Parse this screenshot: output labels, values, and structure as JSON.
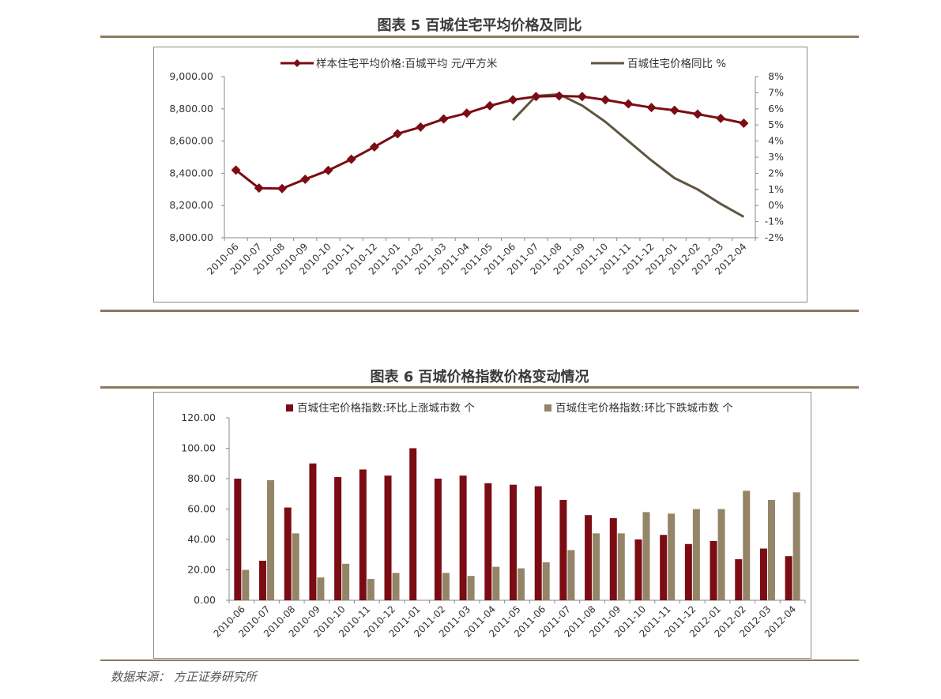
{
  "figure5": {
    "title": "图表 5 百城住宅平均价格及同比"
  },
  "figure6": {
    "title": "图表 6 百城价格指数价格变动情况"
  },
  "source": "数据来源：   方正证券研究所",
  "colors": {
    "dark_red": "#7b0c14",
    "olive": "#5e5440",
    "tan": "#948468",
    "rule": "#8a7a5e"
  },
  "chart_data": [
    {
      "type": "line",
      "categories": [
        "2010-06",
        "2010-07",
        "2010-08",
        "2010-09",
        "2010-10",
        "2010-11",
        "2010-12",
        "2011-01",
        "2011-02",
        "2011-03",
        "2011-04",
        "2011-05",
        "2011-06",
        "2011-07",
        "2011-08",
        "2011-09",
        "2011-10",
        "2011-11",
        "2011-12",
        "2012-01",
        "2012-02",
        "2012-03",
        "2012-04"
      ],
      "series": [
        {
          "name": "样本住宅平均价格:百城平均 元/平方米",
          "axis": "left",
          "marker": "diamond",
          "values": [
            8420,
            8308,
            8305,
            8363,
            8418,
            8487,
            8564,
            8645,
            8687,
            8737,
            8773,
            8819,
            8856,
            8876,
            8880,
            8876,
            8856,
            8831,
            8808,
            8791,
            8767,
            8741,
            8711
          ]
        },
        {
          "name": "百城住宅价格同比 %",
          "axis": "right",
          "values": [
            null,
            null,
            null,
            null,
            null,
            null,
            null,
            null,
            null,
            null,
            null,
            null,
            5.3,
            6.8,
            6.9,
            6.2,
            5.2,
            4.0,
            2.8,
            1.7,
            1.0,
            0.1,
            -0.7
          ]
        }
      ],
      "y_left": {
        "min": 8000,
        "max": 9000,
        "ticks": [
          "8,000.00",
          "8,200.00",
          "8,400.00",
          "8,600.00",
          "8,800.00",
          "9,000.00"
        ]
      },
      "y_right": {
        "min": -2,
        "max": 8,
        "ticks": [
          "-2%",
          "-1%",
          "0%",
          "1%",
          "2%",
          "3%",
          "4%",
          "5%",
          "6%",
          "7%",
          "8%"
        ]
      },
      "legend_position": "top"
    },
    {
      "type": "bar",
      "categories": [
        "2010-06",
        "2010-07",
        "2010-08",
        "2010-09",
        "2010-10",
        "2010-11",
        "2010-12",
        "2011-01",
        "2011-02",
        "2011-03",
        "2011-04",
        "2011-05",
        "2011-06",
        "2011-07",
        "2011-08",
        "2011-09",
        "2011-10",
        "2011-11",
        "2011-12",
        "2012-01",
        "2012-02",
        "2012-03",
        "2012-04"
      ],
      "series": [
        {
          "name": "百城住宅价格指数:环比上涨城市数 个",
          "values": [
            80,
            26,
            61,
            90,
            81,
            86,
            82,
            100,
            80,
            82,
            77,
            76,
            75,
            66,
            56,
            54,
            40,
            43,
            37,
            39,
            27,
            34,
            29
          ]
        },
        {
          "name": "百城住宅价格指数:环比下跌城市数 个",
          "values": [
            20,
            79,
            44,
            15,
            24,
            14,
            18,
            0,
            18,
            16,
            22,
            21,
            25,
            33,
            44,
            44,
            58,
            57,
            60,
            60,
            72,
            66,
            71
          ]
        }
      ],
      "y": {
        "min": 0,
        "max": 120,
        "ticks": [
          "0.00",
          "20.00",
          "40.00",
          "60.00",
          "80.00",
          "100.00",
          "120.00"
        ]
      },
      "legend_position": "top"
    }
  ]
}
